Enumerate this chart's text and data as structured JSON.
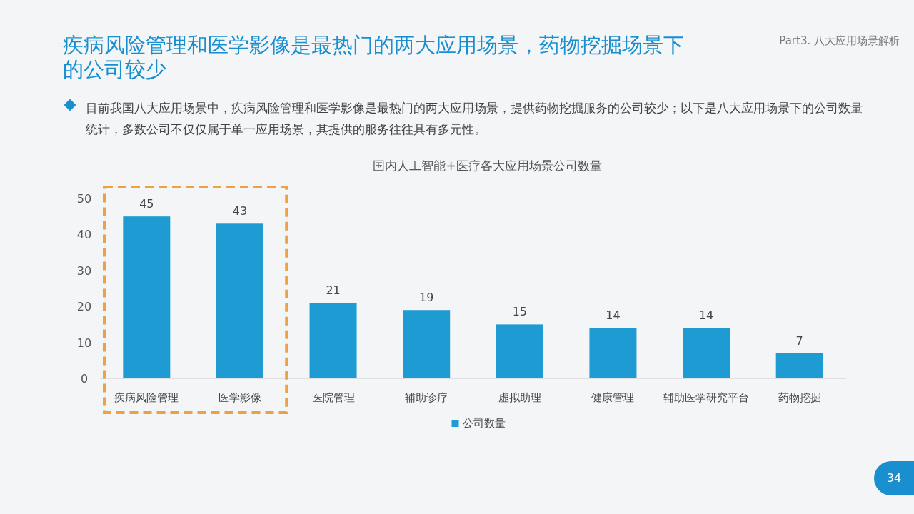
{
  "chart_data": {
    "type": "bar",
    "title": "疾病风险管理和医学影像是最热门的两大应用场景，药物挖掘场景下的公司较少",
    "subtitle": "目前我国八大应用场景中，疾病风险管理和医学影像是最热门的两大应用场景，提供药物挖掘服务的公司较少；以下是八大应用场景下的公司数量统计，多数公司不仅仅属于单一应用场景，其提供的服务往往具有多元性。",
    "categories": [
      "疾病风险管理",
      "医学影像",
      "医院管理",
      "辅助诊疗",
      "虚拟助理",
      "健康管理",
      "辅助医学研究平台",
      "药物挖掘"
    ],
    "series": [
      {
        "name": "公司数量",
        "color": "#1f9bd3",
        "values": [
          45,
          43,
          21,
          19,
          15,
          14,
          14,
          7
        ]
      }
    ],
    "ylim": [
      0,
      50
    ],
    "yticks": [
      0,
      10,
      20,
      30,
      40,
      50
    ],
    "data_labels": true,
    "legend": "bottom",
    "annotations": [
      "国内人工智能+医疗各大应用场景公司数量",
      "Part3. 八大应用场景解析",
      "34"
    ]
  }
}
